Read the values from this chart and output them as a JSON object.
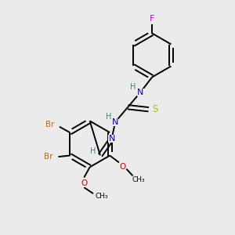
{
  "background_color": "#ebebeb",
  "bond_color": "#000000",
  "N_color": "#0000cc",
  "S_color": "#bbbb00",
  "F_color": "#cc00cc",
  "Br_color": "#cc6600",
  "O_color": "#cc0000",
  "H_color": "#408080",
  "figsize": [
    3.0,
    3.0
  ],
  "dpi": 100,
  "xlim": [
    0,
    10
  ],
  "ylim": [
    0,
    10
  ]
}
